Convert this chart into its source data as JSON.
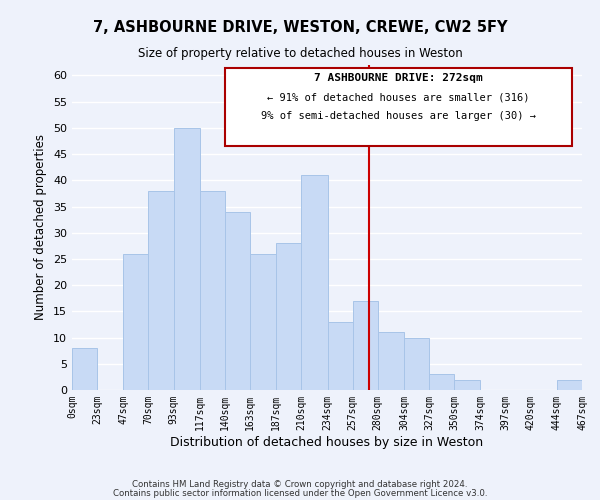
{
  "title": "7, ASHBOURNE DRIVE, WESTON, CREWE, CW2 5FY",
  "subtitle": "Size of property relative to detached houses in Weston",
  "xlabel": "Distribution of detached houses by size in Weston",
  "ylabel": "Number of detached properties",
  "bar_color": "#c8daf5",
  "bar_edge_color": "#a8c4e8",
  "background_color": "#eef2fb",
  "grid_color": "#ffffff",
  "bin_labels": [
    "0sqm",
    "23sqm",
    "47sqm",
    "70sqm",
    "93sqm",
    "117sqm",
    "140sqm",
    "163sqm",
    "187sqm",
    "210sqm",
    "234sqm",
    "257sqm",
    "280sqm",
    "304sqm",
    "327sqm",
    "350sqm",
    "374sqm",
    "397sqm",
    "420sqm",
    "444sqm",
    "467sqm"
  ],
  "bar_heights": [
    8,
    0,
    26,
    38,
    50,
    38,
    34,
    26,
    28,
    41,
    13,
    17,
    11,
    10,
    3,
    2,
    0,
    0,
    0,
    2
  ],
  "ylim": [
    0,
    62
  ],
  "yticks": [
    0,
    5,
    10,
    15,
    20,
    25,
    30,
    35,
    40,
    45,
    50,
    55,
    60
  ],
  "annotation_title": "7 ASHBOURNE DRIVE: 272sqm",
  "annotation_line1": "← 91% of detached houses are smaller (316)",
  "annotation_line2": "9% of semi-detached houses are larger (30) →",
  "footer_line1": "Contains HM Land Registry data © Crown copyright and database right 2024.",
  "footer_line2": "Contains public sector information licensed under the Open Government Licence v3.0.",
  "bin_edges": [
    0,
    23,
    47,
    70,
    93,
    117,
    140,
    163,
    187,
    210,
    234,
    257,
    280,
    304,
    327,
    350,
    374,
    397,
    420,
    444,
    467
  ]
}
